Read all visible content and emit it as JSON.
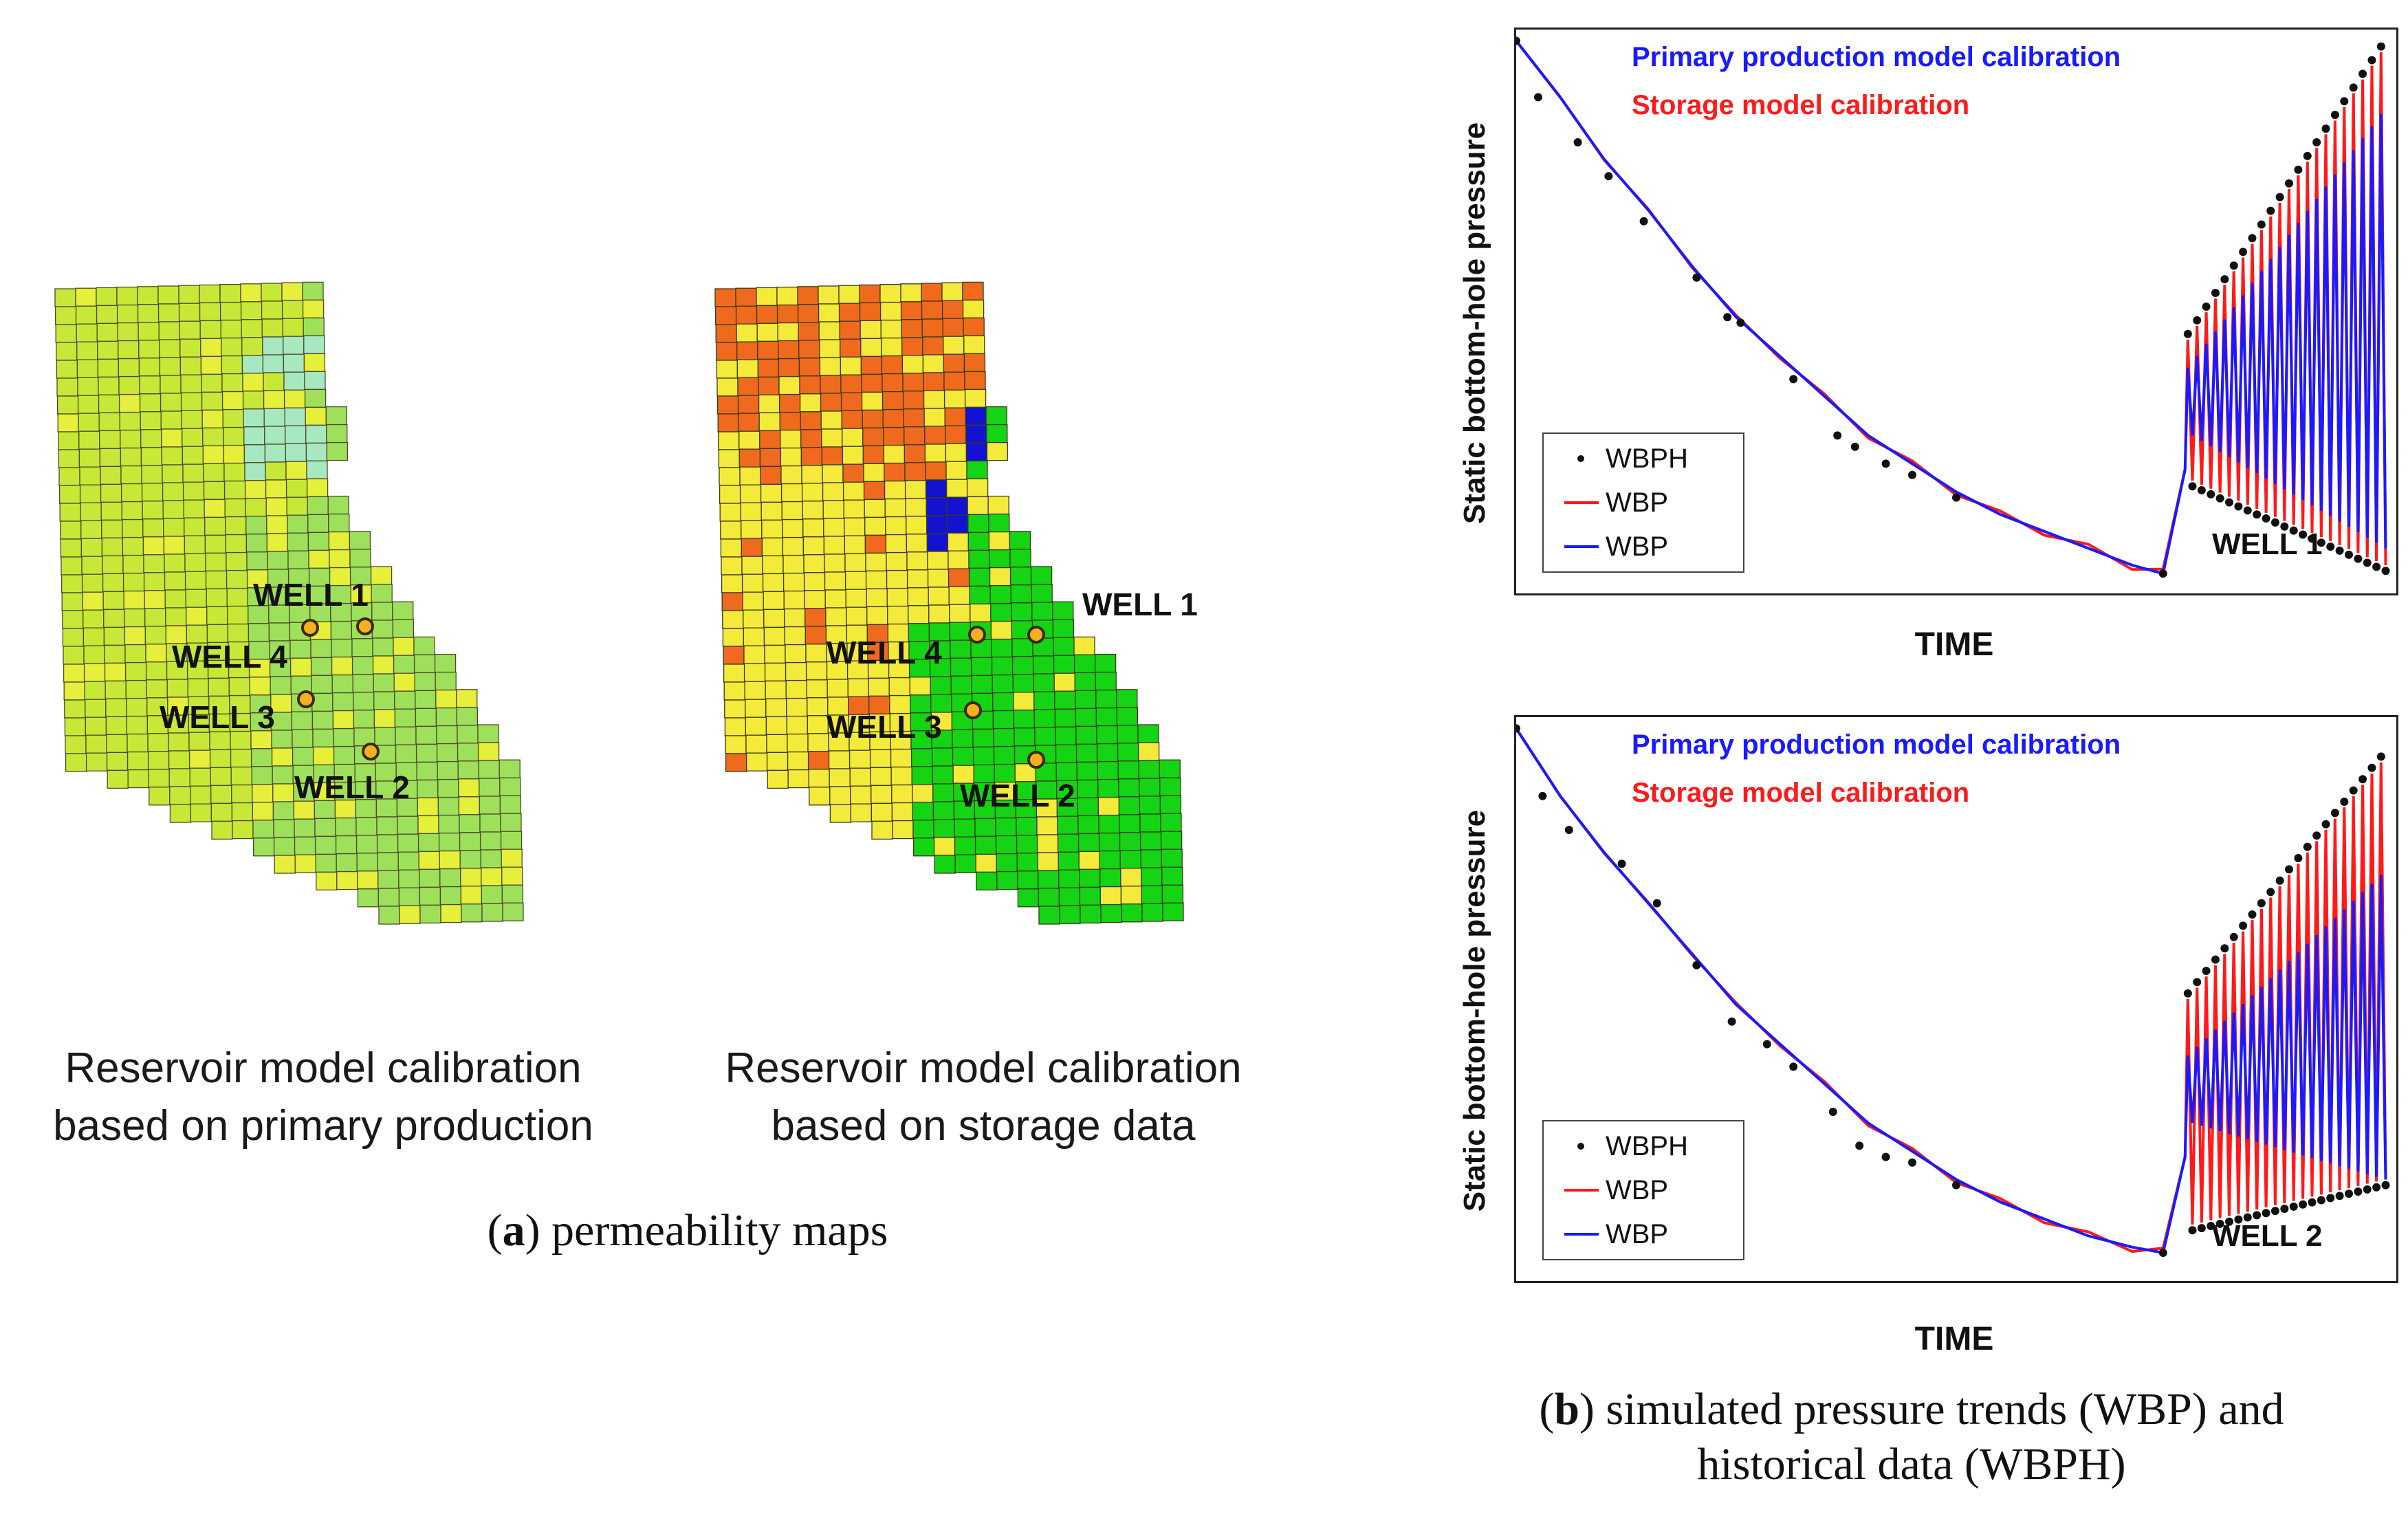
{
  "panel_a": {
    "caption_label": "a",
    "caption_text": " permeability maps",
    "map_left": {
      "caption_line1": "Reservoir model calibration",
      "caption_line2": "based on primary production",
      "wells": [
        "WELL 1",
        "WELL 4",
        "WELL 3",
        "WELL 2"
      ],
      "colors": {
        "base": "#c8e838",
        "low": "#9ee05a",
        "mid": "#e6ef3a",
        "cyan": "#a8e8c0",
        "grid": "#4b4b2a"
      }
    },
    "map_right": {
      "caption_line1": "Reservoir model calibration",
      "caption_line2": "based on storage data",
      "wells": [
        "WELL 1",
        "WELL 4",
        "WELL 3",
        "WELL 2"
      ],
      "colors": {
        "yellow": "#f4ea3a",
        "orange": "#f06a1e",
        "green": "#14d414",
        "blue": "#1212d0",
        "grid": "#3a3a18"
      }
    }
  },
  "panel_b": {
    "caption_label": "b",
    "caption_line1": " simulated pressure trends (WBP) and",
    "caption_line2": "historical data (WBPH)"
  },
  "chart_data": [
    {
      "type": "line",
      "title_primary": "Primary  production model calibration",
      "title_storage": "Storage model calibration",
      "xlabel": "TIME",
      "ylabel": "Static bottom-hole pressure",
      "well": "WELL 1",
      "legend": [
        "WBPH",
        "WBP",
        "WBP"
      ],
      "colors": {
        "primary": "#1a1aff",
        "storage": "#ff1a1a",
        "history": "#111111"
      },
      "xlim": [
        0,
        100
      ],
      "ylim": [
        0,
        100
      ],
      "decline": {
        "x": [
          0,
          5,
          10,
          15,
          20,
          25,
          30,
          35,
          40,
          45,
          50,
          55,
          60,
          65,
          70,
          73.5
        ],
        "y": [
          98,
          88,
          77,
          68,
          58,
          49,
          42,
          35,
          28,
          23,
          18,
          14,
          11,
          8,
          5,
          3.5
        ]
      },
      "history_decline": {
        "x": [
          0,
          2.5,
          7,
          10.5,
          14.5,
          20.5,
          24,
          25.5,
          31.5,
          36.5,
          38.5,
          42,
          45,
          50,
          73.5
        ],
        "y": [
          98,
          88,
          80,
          74,
          66,
          56,
          49,
          48,
          38,
          28,
          26,
          23,
          21,
          17,
          3.5
        ]
      },
      "cycles": {
        "start": 76,
        "end": 99,
        "n": 22,
        "primary_low": [
          28,
          8
        ],
        "primary_high": [
          40,
          85
        ],
        "storage_low": [
          20,
          5
        ],
        "storage_high": [
          45,
          96
        ]
      }
    },
    {
      "type": "line",
      "title_primary": "Primary  production model calibration",
      "title_storage": "Storage model calibration",
      "xlabel": "TIME",
      "ylabel": "Static bottom-hole pressure",
      "well": "WELL 2",
      "legend": [
        "WBPH",
        "WBP",
        "WBP"
      ],
      "colors": {
        "primary": "#1a1aff",
        "storage": "#ff1a1a",
        "history": "#111111"
      },
      "xlim": [
        0,
        100
      ],
      "ylim": [
        0,
        100
      ],
      "decline": {
        "x": [
          0,
          5,
          10,
          15,
          20,
          25,
          30,
          35,
          40,
          45,
          50,
          55,
          60,
          65,
          70,
          73.5
        ],
        "y": [
          98,
          86,
          76,
          67,
          58,
          49,
          42,
          35,
          28,
          23,
          18,
          14,
          11,
          8,
          6,
          5
        ]
      },
      "history_decline": {
        "x": [
          0,
          3,
          6,
          12,
          16,
          20.5,
          24.5,
          28.5,
          31.5,
          36,
          39,
          42,
          45,
          50,
          73.5
        ],
        "y": [
          98,
          86,
          80,
          74,
          67,
          56,
          46,
          42,
          38,
          30,
          24,
          22,
          21,
          17,
          5
        ]
      },
      "cycles": {
        "start": 76,
        "end": 99,
        "n": 22,
        "primary_low": [
          28,
          18
        ],
        "primary_high": [
          40,
          72
        ],
        "storage_low": [
          10,
          18
        ],
        "storage_high": [
          50,
          92
        ]
      }
    }
  ]
}
